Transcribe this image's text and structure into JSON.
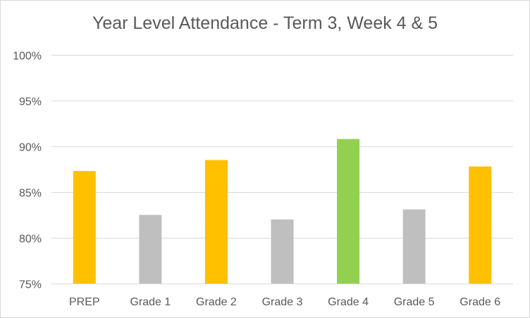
{
  "chart_data": {
    "type": "bar",
    "title": "Year Level Attendance - Term 3, Week 4 & 5",
    "xlabel": "",
    "ylabel": "",
    "categories": [
      "PREP",
      "Grade 1",
      "Grade 2",
      "Grade 3",
      "Grade 4",
      "Grade 5",
      "Grade 6"
    ],
    "values": [
      87.3,
      82.5,
      88.5,
      82.0,
      90.8,
      83.1,
      87.8
    ],
    "value_unit": "%",
    "bar_colors": [
      "#ffc000",
      "#bfbfbf",
      "#ffc000",
      "#bfbfbf",
      "#92d050",
      "#bfbfbf",
      "#ffc000"
    ],
    "ylim": [
      75,
      100
    ],
    "yticks": [
      75,
      80,
      85,
      90,
      95,
      100
    ],
    "ytick_labels": [
      "75%",
      "80%",
      "85%",
      "90%",
      "95%",
      "100%"
    ],
    "grid": true,
    "legend": "none"
  }
}
